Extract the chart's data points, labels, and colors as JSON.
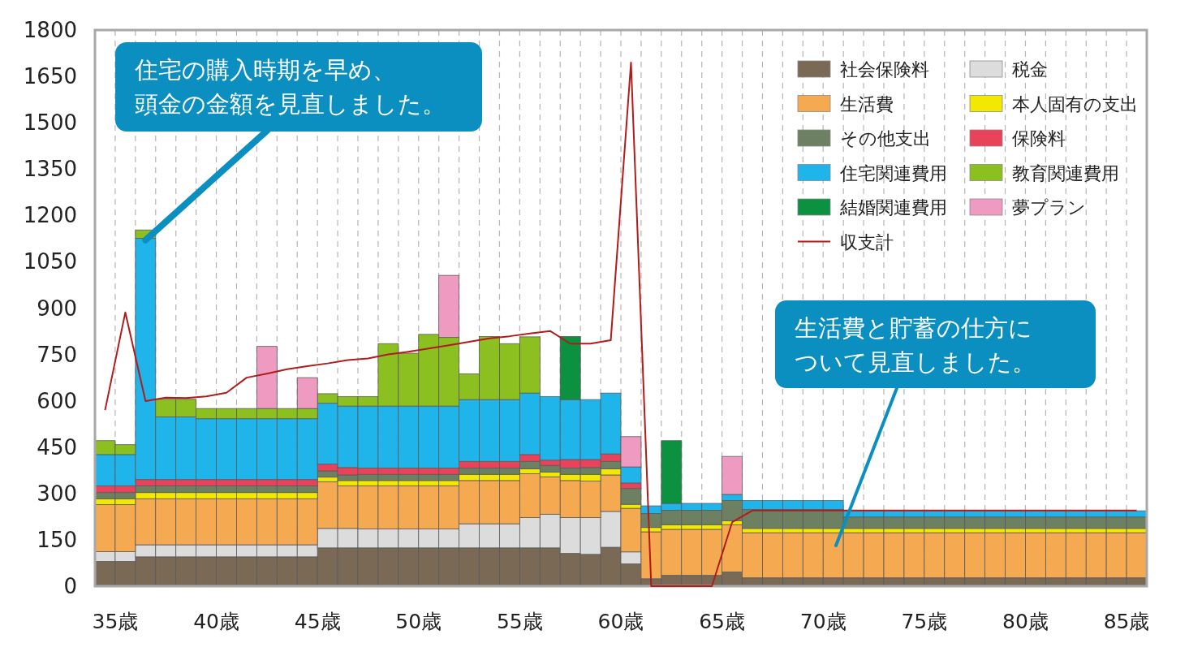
{
  "chart_data": {
    "type": "bar",
    "stacked": true,
    "x": [
      34.5,
      35.5,
      36.5,
      37.5,
      38.5,
      39.5,
      40.5,
      41.5,
      42.5,
      43.5,
      44.5,
      45.5,
      46.5,
      47.5,
      48.5,
      49.5,
      50.5,
      51.5,
      52.5,
      53.5,
      54.5,
      55.5,
      56.5,
      57.5,
      58.5,
      59.5,
      60.5,
      61.5,
      62.5,
      63.5,
      64.5,
      65.5,
      66.5,
      67.5,
      68.5,
      69.5,
      70.5,
      71.5,
      72.5,
      73.5,
      74.5,
      75.5,
      76.5,
      77.5,
      78.5,
      79.5,
      80.5,
      81.5,
      82.5,
      83.5,
      84.5,
      85.5
    ],
    "series": [
      {
        "name": "社会保険料",
        "color": "#7a6a55",
        "values": [
          80,
          80,
          95,
          95,
          95,
          95,
          95,
          95,
          95,
          95,
          95,
          124,
          124,
          124,
          124,
          124,
          124,
          124,
          124,
          124,
          124,
          124,
          124,
          106,
          103,
          126,
          72,
          24,
          35,
          35,
          35,
          46,
          27,
          27,
          27,
          27,
          27,
          27,
          27,
          27,
          27,
          27,
          27,
          27,
          27,
          27,
          27,
          27,
          27,
          27,
          27,
          27
        ]
      },
      {
        "name": "税金",
        "color": "#dcdcdc",
        "values": [
          32,
          32,
          39,
          39,
          39,
          39,
          39,
          39,
          39,
          39,
          39,
          63,
          63,
          61,
          61,
          61,
          61,
          61,
          78,
          78,
          78,
          98,
          109,
          116,
          119,
          116,
          39,
          0,
          0,
          0,
          0,
          0,
          0,
          0,
          0,
          0,
          0,
          0,
          0,
          0,
          0,
          0,
          0,
          0,
          0,
          0,
          0,
          0,
          0,
          0,
          0,
          0
        ]
      },
      {
        "name": "生活費",
        "color": "#f5a951",
        "values": [
          152,
          152,
          149,
          149,
          149,
          149,
          149,
          149,
          149,
          149,
          149,
          151,
          138,
          140,
          140,
          140,
          140,
          140,
          140,
          140,
          140,
          142,
          121,
          120,
          118,
          118,
          141,
          152,
          149,
          149,
          149,
          153,
          146,
          146,
          146,
          146,
          146,
          146,
          146,
          146,
          146,
          146,
          146,
          146,
          146,
          146,
          146,
          146,
          146,
          146,
          146,
          146
        ]
      },
      {
        "name": "本人固有の支出",
        "color": "#f3e800",
        "values": [
          19,
          19,
          20,
          20,
          20,
          20,
          20,
          20,
          20,
          20,
          20,
          15,
          17,
          17,
          17,
          17,
          17,
          17,
          20,
          20,
          20,
          16,
          15,
          20,
          22,
          20,
          13,
          14,
          15,
          15,
          15,
          13,
          14,
          14,
          14,
          14,
          14,
          14,
          14,
          14,
          14,
          14,
          14,
          14,
          14,
          14,
          14,
          14,
          14,
          14,
          14,
          14
        ]
      },
      {
        "name": "その他支出",
        "color": "#6e8062",
        "values": [
          20,
          20,
          22,
          22,
          22,
          22,
          22,
          22,
          22,
          22,
          22,
          20,
          18,
          20,
          20,
          20,
          20,
          20,
          20,
          20,
          20,
          24,
          22,
          20,
          22,
          24,
          51,
          45,
          47,
          47,
          47,
          65,
          61,
          61,
          61,
          61,
          61,
          37,
          37,
          37,
          37,
          37,
          37,
          37,
          37,
          37,
          37,
          37,
          37,
          37,
          37,
          37
        ]
      },
      {
        "name": "保険料",
        "color": "#e8435a",
        "values": [
          22,
          22,
          20,
          20,
          20,
          20,
          20,
          20,
          20,
          20,
          20,
          22,
          24,
          20,
          20,
          20,
          20,
          20,
          22,
          22,
          22,
          22,
          17,
          28,
          26,
          24,
          18,
          0,
          0,
          0,
          0,
          0,
          0,
          0,
          0,
          0,
          0,
          0,
          0,
          0,
          0,
          0,
          0,
          0,
          0,
          0,
          0,
          0,
          0,
          0,
          0,
          0
        ]
      },
      {
        "name": "住宅関連費用",
        "color": "#20b5ea",
        "values": [
          101,
          101,
          781,
          203,
          203,
          197,
          197,
          197,
          197,
          197,
          197,
          197,
          199,
          201,
          201,
          201,
          201,
          201,
          200,
          200,
          200,
          199,
          206,
          194,
          194,
          197,
          52,
          25,
          22,
          22,
          22,
          20,
          29,
          29,
          29,
          29,
          29,
          20,
          20,
          20,
          20,
          20,
          20,
          20,
          20,
          20,
          20,
          20,
          20,
          20,
          20,
          20
        ]
      },
      {
        "name": "教育関連費用",
        "color": "#8cc020",
        "values": [
          45,
          32,
          27,
          57,
          57,
          33,
          33,
          33,
          33,
          33,
          33,
          31,
          31,
          31,
          202,
          171,
          232,
          222,
          83,
          204,
          181,
          182,
          0,
          0,
          0,
          0,
          0,
          0,
          0,
          0,
          0,
          0,
          0,
          0,
          0,
          0,
          0,
          0,
          0,
          0,
          0,
          0,
          0,
          0,
          0,
          0,
          0,
          0,
          0,
          0,
          0,
          0
        ]
      },
      {
        "name": "結婚関連費用",
        "color": "#0b9140",
        "values": [
          0,
          0,
          0,
          0,
          0,
          0,
          0,
          0,
          0,
          0,
          0,
          0,
          0,
          0,
          0,
          0,
          0,
          0,
          0,
          0,
          0,
          0,
          0,
          204,
          0,
          0,
          0,
          0,
          203,
          0,
          0,
          0,
          0,
          0,
          0,
          0,
          0,
          0,
          0,
          0,
          0,
          0,
          0,
          0,
          0,
          0,
          0,
          0,
          0,
          0,
          0,
          0
        ]
      },
      {
        "name": "夢プラン",
        "color": "#ef9ac0",
        "values": [
          0,
          0,
          0,
          0,
          0,
          0,
          0,
          0,
          201,
          0,
          100,
          0,
          0,
          0,
          0,
          0,
          0,
          201,
          0,
          0,
          0,
          0,
          0,
          0,
          0,
          0,
          98,
          0,
          0,
          0,
          0,
          123,
          0,
          0,
          0,
          0,
          0,
          0,
          0,
          0,
          0,
          0,
          0,
          0,
          0,
          0,
          0,
          0,
          0,
          0,
          0,
          0
        ]
      },
      {
        "name": "収支計",
        "type": "line",
        "color": "#b01c1c",
        "values": [
          570,
          886,
          599,
          610,
          609,
          614,
          626,
          675,
          688,
          702,
          712,
          721,
          732,
          737,
          750,
          759,
          769,
          780,
          791,
          802,
          809,
          818,
          826,
          785,
          785,
          796,
          1695,
          0,
          0,
          0,
          0,
          207,
          245,
          245,
          245,
          245,
          245,
          245,
          245,
          245,
          245,
          245,
          245,
          245,
          245,
          245,
          245,
          245,
          245,
          245,
          245,
          245
        ]
      }
    ],
    "xlim": [
      34,
      86
    ],
    "xticks": [
      {
        "value": 35,
        "label": "35歳"
      },
      {
        "value": 36,
        "label": null
      },
      {
        "value": 37,
        "label": null
      },
      {
        "value": 38,
        "label": null
      },
      {
        "value": 39,
        "label": null
      },
      {
        "value": 40,
        "label": "40歳"
      },
      {
        "value": 41,
        "label": null
      },
      {
        "value": 42,
        "label": null
      },
      {
        "value": 43,
        "label": null
      },
      {
        "value": 44,
        "label": null
      },
      {
        "value": 45,
        "label": "45歳"
      },
      {
        "value": 46,
        "label": null
      },
      {
        "value": 47,
        "label": null
      },
      {
        "value": 48,
        "label": null
      },
      {
        "value": 49,
        "label": null
      },
      {
        "value": 50,
        "label": "50歳"
      },
      {
        "value": 51,
        "label": null
      },
      {
        "value": 52,
        "label": null
      },
      {
        "value": 53,
        "label": null
      },
      {
        "value": 54,
        "label": null
      },
      {
        "value": 55,
        "label": "55歳"
      },
      {
        "value": 56,
        "label": null
      },
      {
        "value": 57,
        "label": null
      },
      {
        "value": 58,
        "label": null
      },
      {
        "value": 59,
        "label": null
      },
      {
        "value": 60,
        "label": "60歳"
      },
      {
        "value": 61,
        "label": null
      },
      {
        "value": 62,
        "label": null
      },
      {
        "value": 63,
        "label": null
      },
      {
        "value": 64,
        "label": null
      },
      {
        "value": 65,
        "label": "65歳"
      },
      {
        "value": 66,
        "label": null
      },
      {
        "value": 67,
        "label": null
      },
      {
        "value": 68,
        "label": null
      },
      {
        "value": 69,
        "label": null
      },
      {
        "value": 70,
        "label": "70歳"
      },
      {
        "value": 71,
        "label": null
      },
      {
        "value": 72,
        "label": null
      },
      {
        "value": 73,
        "label": null
      },
      {
        "value": 74,
        "label": null
      },
      {
        "value": 75,
        "label": "75歳"
      },
      {
        "value": 76,
        "label": null
      },
      {
        "value": 77,
        "label": null
      },
      {
        "value": 78,
        "label": null
      },
      {
        "value": 79,
        "label": null
      },
      {
        "value": 80,
        "label": "80歳"
      },
      {
        "value": 81,
        "label": null
      },
      {
        "value": 82,
        "label": null
      },
      {
        "value": 83,
        "label": null
      },
      {
        "value": 84,
        "label": null
      },
      {
        "value": 85,
        "label": "85歳"
      }
    ],
    "ylim": [
      0,
      1800
    ],
    "yticks": [
      0,
      150,
      300,
      450,
      600,
      750,
      900,
      1050,
      1200,
      1350,
      1500,
      1650,
      1800
    ],
    "grid": "x",
    "legend": "top right",
    "annotations": [
      {
        "text": "住宅の購入時期を早め、頭金の金額を見直しました。",
        "x": 36.5,
        "y": 1120
      },
      "生活費と貯蓄の仕方について見直しました。"
    ]
  }
}
